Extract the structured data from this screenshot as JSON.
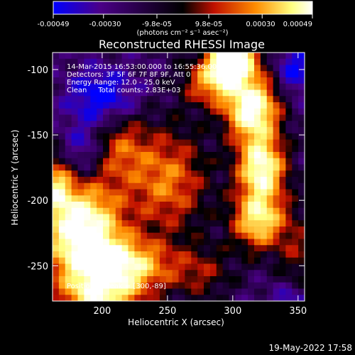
{
  "colorbar": {
    "tick_labels": [
      "-0.00049",
      "-0.00030",
      "-9.8e-05",
      "9.8e-05",
      "0.00030",
      "0.00049"
    ],
    "tick_values": [
      -0.00049,
      -0.0003,
      -9.8e-05,
      9.8e-05,
      0.0003,
      0.00049
    ],
    "units": "(photons cm⁻² s⁻¹ asec⁻²)",
    "colors": [
      "#0000ff",
      "#4b0088",
      "#000000",
      "#c01000",
      "#ff8c00",
      "#ffff80",
      "#ffffff"
    ]
  },
  "chart_data": {
    "type": "heatmap",
    "title": "Reconstructed RHESSI Image",
    "xlabel": "Heliocentric X (arcsec)",
    "ylabel": "Heliocentric Y (arcsec)",
    "xlim": [
      162,
      355
    ],
    "ylim": [
      -277,
      -87
    ],
    "xticks": [
      200,
      250,
      300,
      350
    ],
    "yticks": [
      -100,
      -150,
      -200,
      -250
    ],
    "grid": false,
    "info_lines": [
      "14-Mar-2015 16:53:00.000 to 16:55:36.000",
      "Detectors: 3F 5F 6F 7F 8F 9F, Att 0",
      "Energy Range: 12.0 - 25.0 keV",
      "Clean     Total counts: 2.83E+03"
    ],
    "peak_label": "Position of Peak = [300,-89]",
    "peak_position": [
      300,
      -89
    ],
    "value_range": [
      -0.00049,
      0.00049
    ],
    "grid_rows": 40,
    "grid_cols": 40
  },
  "footer": {
    "timestamp": "19-May-2022 17:58"
  }
}
